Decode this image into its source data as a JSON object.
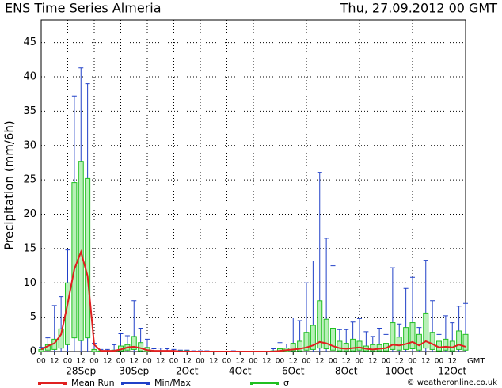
{
  "chart_data": {
    "type": "ensemble",
    "title": "ENS Time Series Almeria",
    "subtitle": "Thu, 27.09.2012 00 GMT",
    "y_label": "Precipitation (mm/6h)",
    "x_unit": "GMT",
    "credit": "© weatheronline.co.uk",
    "x": [
      0,
      6,
      12,
      18,
      24,
      30,
      36,
      42,
      48,
      54,
      60,
      66,
      72,
      78,
      84,
      90,
      96,
      102,
      108,
      114,
      120,
      126,
      132,
      138,
      144,
      150,
      156,
      162,
      168,
      174,
      180,
      186,
      192,
      198,
      204,
      210,
      216,
      222,
      228,
      234,
      240,
      246,
      252,
      258,
      264,
      270,
      276,
      282,
      288,
      294,
      300,
      306,
      312,
      318,
      324,
      330,
      336,
      342,
      348,
      354,
      360,
      366,
      372,
      378,
      384
    ],
    "series": [
      {
        "name": "Mean Run",
        "color": "#e02020",
        "values": [
          0.3,
          0.8,
          1.2,
          2.5,
          7,
          12,
          14.5,
          11,
          1,
          0.1,
          0.1,
          0.1,
          0.3,
          0.6,
          0.7,
          0.5,
          0.2,
          0.1,
          0.1,
          0.1,
          0.1,
          0,
          0,
          0,
          0,
          0,
          0,
          0,
          0,
          0,
          0,
          0,
          0,
          0,
          0,
          0,
          0.1,
          0.2,
          0.3,
          0.4,
          0.6,
          0.9,
          1.4,
          1.2,
          0.8,
          0.5,
          0.4,
          0.5,
          0.6,
          0.4,
          0.3,
          0.4,
          0.5,
          1,
          0.9,
          1.1,
          1.4,
          0.9,
          1.5,
          1.1,
          0.6,
          0.7,
          0.6,
          1,
          0.7
        ]
      },
      {
        "name": "Min/Max",
        "color": "#2040c8",
        "min": [
          0,
          0,
          0,
          0,
          0,
          0,
          0,
          0,
          0,
          0,
          0,
          0,
          0,
          0,
          0,
          0,
          0,
          0,
          0,
          0,
          0,
          0,
          0,
          0,
          0,
          0,
          0,
          0,
          0,
          0,
          0,
          0,
          0,
          0,
          0,
          0,
          0,
          0,
          0,
          0,
          0,
          0,
          0,
          0,
          0,
          0,
          0,
          0,
          0,
          0,
          0,
          0,
          0,
          0,
          0,
          0,
          0,
          0,
          0,
          0,
          0,
          0,
          0,
          0,
          0
        ],
        "max": [
          0.6,
          2,
          6.7,
          8,
          14.8,
          37.2,
          41.3,
          39,
          1.2,
          0.3,
          0.3,
          1,
          2.6,
          2.3,
          7.4,
          3.4,
          1.8,
          0.4,
          0.5,
          0.4,
          0.3,
          0.2,
          0.2,
          0.1,
          0.1,
          0.1,
          0,
          0,
          0,
          0.1,
          0,
          0,
          0,
          0,
          0,
          0.4,
          1.3,
          1.1,
          4.9,
          4.5,
          10,
          13.2,
          26.1,
          16.5,
          12.5,
          3.2,
          3.2,
          4.3,
          4.8,
          2.9,
          2.2,
          3.4,
          2.5,
          12.2,
          4,
          9.2,
          10.8,
          3.5,
          13.3,
          7.4,
          2.5,
          5.2,
          4.2,
          6.6,
          7
        ]
      },
      {
        "name": "σ",
        "color": "#20c020",
        "low": [
          0,
          0.2,
          0.3,
          0.5,
          1,
          2,
          1.6,
          2,
          0,
          0,
          0,
          0,
          0.1,
          0.2,
          0.3,
          0.1,
          0,
          0,
          0,
          0,
          0,
          0,
          0,
          0,
          0,
          0,
          0,
          0,
          0,
          0,
          0,
          0,
          0,
          0,
          0,
          0,
          0,
          0,
          0.1,
          0.1,
          0.2,
          0.3,
          0.5,
          0.4,
          0.2,
          0.1,
          0.1,
          0.1,
          0.2,
          0.1,
          0.1,
          0.1,
          0.1,
          0.3,
          0.2,
          0.3,
          0.4,
          0.2,
          0.5,
          0.3,
          0.1,
          0.2,
          0.1,
          0.3,
          0.2
        ],
        "high": [
          0.3,
          1,
          1.8,
          3.3,
          10,
          24.6,
          27.7,
          25.2,
          0.3,
          0.1,
          0.1,
          0.2,
          0.8,
          1,
          2.2,
          1.3,
          0.6,
          0.1,
          0.1,
          0.1,
          0.1,
          0.1,
          0.1,
          0,
          0,
          0,
          0,
          0,
          0,
          0,
          0,
          0,
          0,
          0,
          0,
          0.1,
          0.4,
          0.5,
          1.2,
          1.5,
          2.8,
          3.8,
          7.4,
          4.7,
          3.4,
          1.5,
          1.2,
          1.8,
          1.5,
          0.8,
          1,
          1,
          1.2,
          4.2,
          2.1,
          3.5,
          4.2,
          2.5,
          5.6,
          2.8,
          1.5,
          1.8,
          1.5,
          3,
          2.5
        ]
      }
    ],
    "xlim": [
      0,
      384
    ],
    "ylim": [
      0,
      48.3
    ],
    "yticks": [
      0,
      5,
      10,
      15,
      20,
      25,
      30,
      35,
      40,
      45
    ],
    "xticks": [
      {
        "value": 0,
        "label": "00"
      },
      {
        "value": 12,
        "label": "12"
      },
      {
        "value": 24,
        "label": "00"
      },
      {
        "value": 36,
        "label": "12"
      },
      {
        "value": 48,
        "label": "00"
      },
      {
        "value": 60,
        "label": "12"
      },
      {
        "value": 72,
        "label": "00"
      },
      {
        "value": 84,
        "label": "12"
      },
      {
        "value": 96,
        "label": "00"
      },
      {
        "value": 108,
        "label": "12"
      },
      {
        "value": 120,
        "label": "00"
      },
      {
        "value": 132,
        "label": "12"
      },
      {
        "value": 144,
        "label": "00"
      },
      {
        "value": 156,
        "label": "12"
      },
      {
        "value": 168,
        "label": "00"
      },
      {
        "value": 180,
        "label": "12"
      },
      {
        "value": 192,
        "label": "00"
      },
      {
        "value": 204,
        "label": "12"
      },
      {
        "value": 216,
        "label": "00"
      },
      {
        "value": 228,
        "label": "12"
      },
      {
        "value": 240,
        "label": "00"
      },
      {
        "value": 252,
        "label": "12"
      },
      {
        "value": 264,
        "label": "00"
      },
      {
        "value": 276,
        "label": "12"
      },
      {
        "value": 288,
        "label": "00"
      },
      {
        "value": 300,
        "label": "12"
      },
      {
        "value": 312,
        "label": "00"
      },
      {
        "value": 324,
        "label": "12"
      },
      {
        "value": 336,
        "label": "00"
      },
      {
        "value": 348,
        "label": "12"
      },
      {
        "value": 360,
        "label": "00"
      },
      {
        "value": 372,
        "label": "12"
      }
    ],
    "xdates": [
      {
        "value": 36,
        "label": "28Sep"
      },
      {
        "value": 84,
        "label": "30Sep"
      },
      {
        "value": 132,
        "label": "2Oct"
      },
      {
        "value": 180,
        "label": "4Oct"
      },
      {
        "value": 228,
        "label": "6Oct"
      },
      {
        "value": 276,
        "label": "8Oct"
      },
      {
        "value": 324,
        "label": "10Oct"
      },
      {
        "value": 372,
        "label": "12Oct"
      }
    ],
    "xgrid": [
      24,
      48,
      72,
      96,
      120,
      144,
      168,
      192,
      216,
      240,
      264,
      288,
      312,
      336,
      360
    ],
    "grid": true
  }
}
